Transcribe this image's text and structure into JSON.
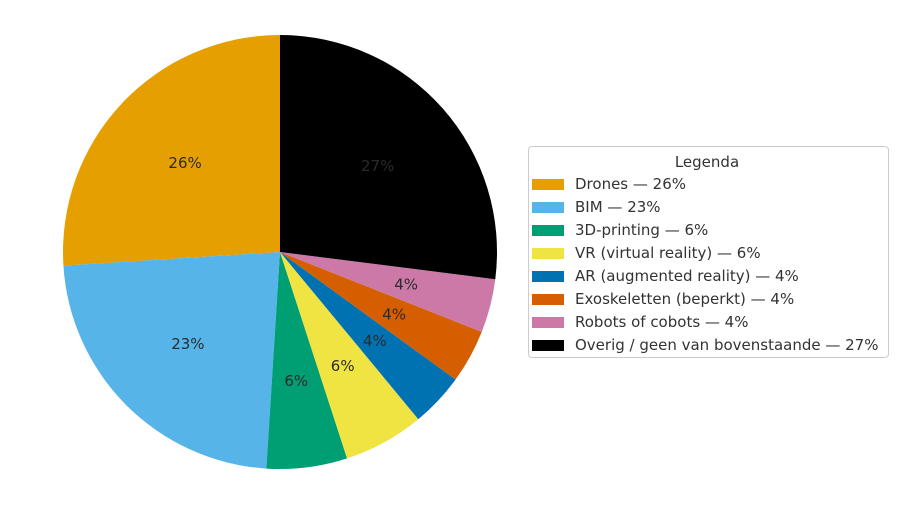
{
  "figure": {
    "background": "#ffffff"
  },
  "legend": {
    "title": "Legenda",
    "position": "center right",
    "border_color": "#cccccc",
    "background": "#ffffff",
    "text_color": "#333333"
  },
  "chart_data": {
    "type": "pie",
    "title": "",
    "legend_title": "Legenda",
    "start_angle": 90,
    "direction": "counterclockwise",
    "unit": "%",
    "label_distance": 0.6,
    "label_color": "#2b2b2b",
    "categories": [
      "Drones",
      "BIM",
      "3D-printing",
      "VR (virtual reality)",
      "AR (augmented reality)",
      "Exoskeletten (beperkt)",
      "Robots of cobots",
      "Overig / geen van bovenstaande"
    ],
    "values": [
      26,
      23,
      6,
      6,
      4,
      4,
      4,
      27
    ],
    "colors": [
      "#E69F00",
      "#56B4E9",
      "#009E73",
      "#F0E442",
      "#0072B2",
      "#D55E00",
      "#CC79A7",
      "#000000"
    ],
    "slice_labels": [
      "26%",
      "23%",
      "6%",
      "6%",
      "4%",
      "4%",
      "4%",
      "27%"
    ],
    "legend_entries": [
      "Drones — 26%",
      "BIM — 23%",
      "3D-printing — 6%",
      "VR (virtual reality) — 6%",
      "AR (augmented reality) — 4%",
      "Exoskeletten (beperkt) — 4%",
      "Robots of cobots — 4%",
      "Overig / geen van bovenstaande — 27%"
    ]
  }
}
